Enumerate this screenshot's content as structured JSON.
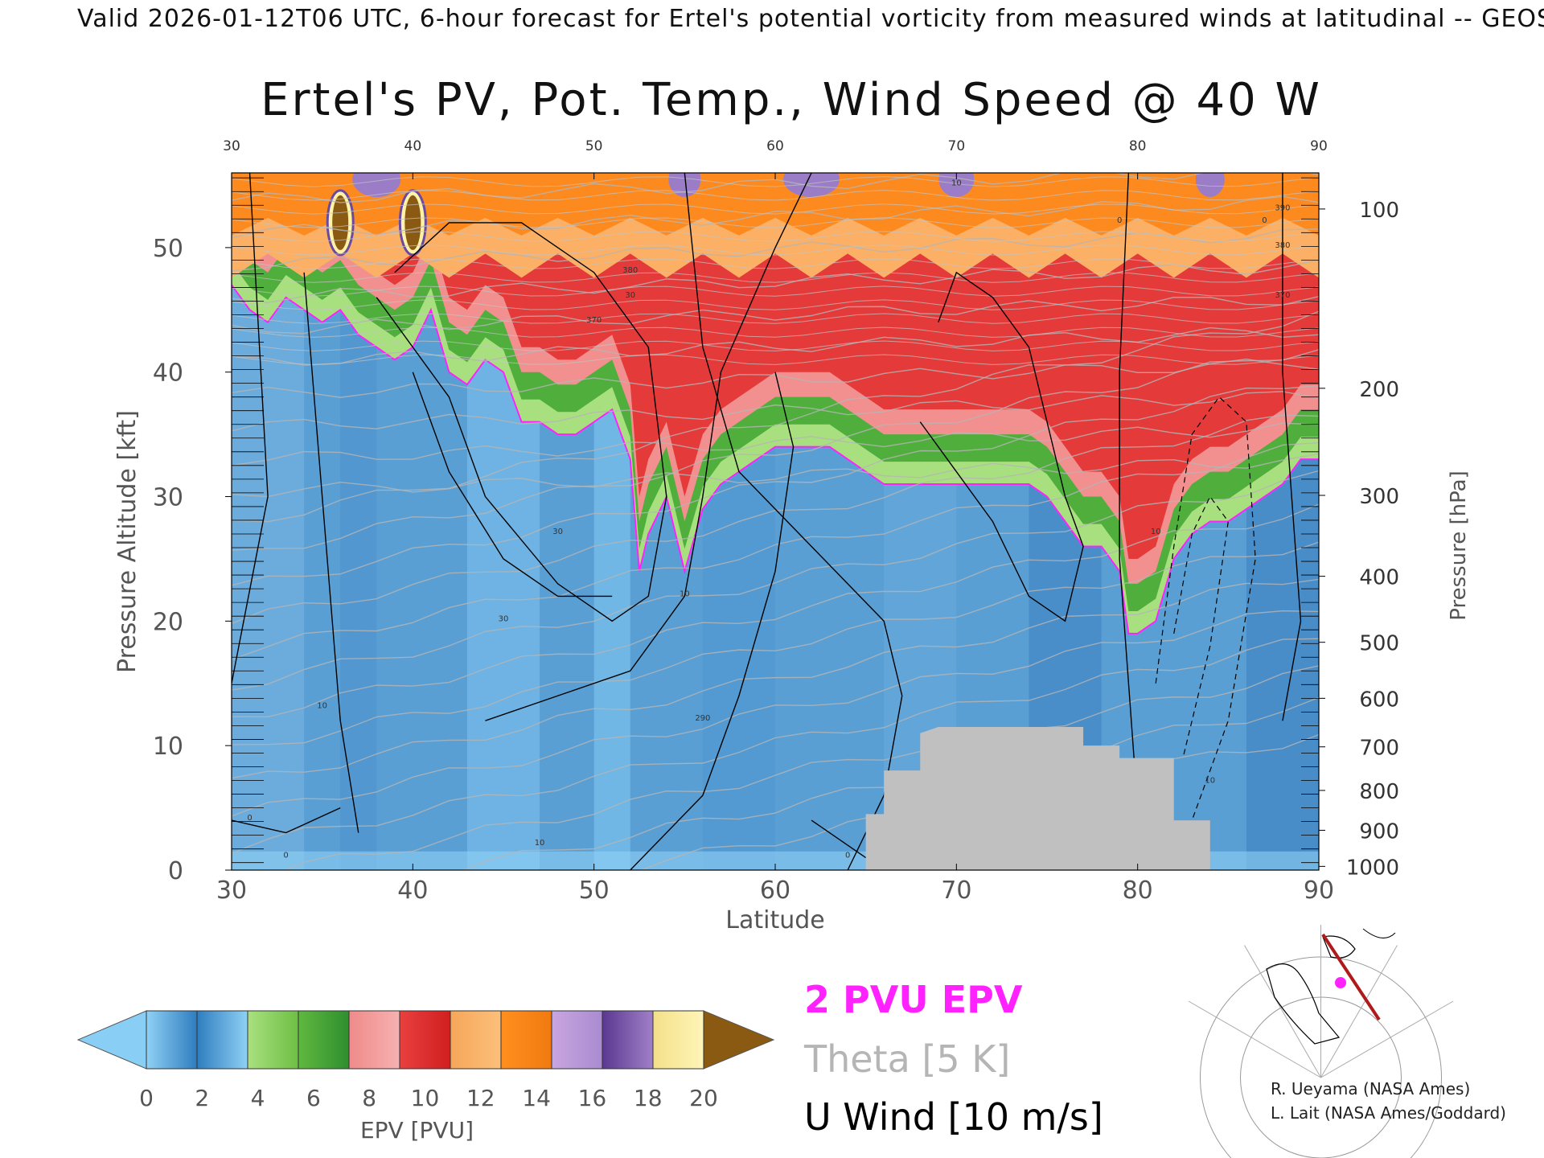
{
  "header": {
    "text": "Valid 2026-01-12T06 UTC, 6-hour forecast for Ertel's potential vorticity from measured winds at latitudinal -- GEOS"
  },
  "chart_data": {
    "type": "heatmap",
    "title": "Ertel's PV, Pot. Temp., Wind Speed @ 40 W",
    "xlabel": "Latitude",
    "ylabel_left": "Pressure Altitude [kft]",
    "ylabel_right": "Pressure [hPa]",
    "xlim": [
      30,
      90
    ],
    "ylim": [
      0,
      56
    ],
    "x_ticks": [
      30,
      40,
      50,
      60,
      70,
      80,
      90
    ],
    "y_ticks": [
      0,
      10,
      20,
      30,
      40,
      50
    ],
    "pressure_ticks": [
      {
        "label": "100",
        "kft": 53.1
      },
      {
        "label": "200",
        "kft": 38.7
      },
      {
        "label": "300",
        "kft": 30.1
      },
      {
        "label": "400",
        "kft": 23.6
      },
      {
        "label": "500",
        "kft": 18.3
      },
      {
        "label": "600",
        "kft": 13.8
      },
      {
        "label": "700",
        "kft": 9.9
      },
      {
        "label": "800",
        "kft": 6.4
      },
      {
        "label": "900",
        "kft": 3.2
      },
      {
        "label": "1000",
        "kft": 0.3
      }
    ],
    "colorbar": {
      "label": "EPV [PVU]",
      "ticks": [
        "0",
        "2",
        "4",
        "6",
        "8",
        "10",
        "12",
        "14",
        "16",
        "18",
        "20"
      ],
      "segments": [
        [
          "#8fd1f5",
          "#2f7dbf"
        ],
        [
          "#2f7dbf",
          "#8fd1f5"
        ],
        [
          "#a9e07f",
          "#6ebf45"
        ],
        [
          "#5fb83f",
          "#2f8f2f"
        ],
        [
          "#ef8a8a",
          "#f7b1b1"
        ],
        [
          "#e84040",
          "#d11f1f"
        ],
        [
          "#f6a65a",
          "#fcc07a"
        ],
        [
          "#ff8f1f",
          "#f07a10"
        ],
        [
          "#c9a6e0",
          "#a98bd0"
        ],
        [
          "#5a3890",
          "#a080c8"
        ],
        [
          "#f4e08a",
          "#fff5b8"
        ]
      ],
      "under_color": "#89cff5",
      "over_color": "#8b5a12"
    },
    "tropopause_boundary_kft": [
      [
        30,
        47
      ],
      [
        31,
        45
      ],
      [
        32,
        44
      ],
      [
        33,
        46
      ],
      [
        34,
        45
      ],
      [
        35,
        44
      ],
      [
        36,
        45
      ],
      [
        37,
        43
      ],
      [
        38,
        42
      ],
      [
        39,
        41
      ],
      [
        40,
        42
      ],
      [
        41,
        45
      ],
      [
        42,
        40
      ],
      [
        43,
        39
      ],
      [
        44,
        41
      ],
      [
        45,
        40
      ],
      [
        46,
        36
      ],
      [
        47,
        36
      ],
      [
        48,
        35
      ],
      [
        49,
        35
      ],
      [
        50,
        36
      ],
      [
        51,
        37
      ],
      [
        52,
        33
      ],
      [
        52.5,
        24
      ],
      [
        53,
        27
      ],
      [
        54,
        30
      ],
      [
        55,
        24
      ],
      [
        56,
        29
      ],
      [
        57,
        31
      ],
      [
        58,
        32
      ],
      [
        59,
        33
      ],
      [
        60,
        34
      ],
      [
        61,
        34
      ],
      [
        62,
        34
      ],
      [
        63,
        34
      ],
      [
        64,
        33
      ],
      [
        65,
        32
      ],
      [
        66,
        31
      ],
      [
        67,
        31
      ],
      [
        68,
        31
      ],
      [
        69,
        31
      ],
      [
        70,
        31
      ],
      [
        71,
        31
      ],
      [
        72,
        31
      ],
      [
        73,
        31
      ],
      [
        74,
        31
      ],
      [
        75,
        30
      ],
      [
        76,
        28
      ],
      [
        77,
        26
      ],
      [
        78,
        26
      ],
      [
        79,
        24
      ],
      [
        79.5,
        19
      ],
      [
        80,
        19
      ],
      [
        81,
        20
      ],
      [
        82,
        25
      ],
      [
        83,
        27
      ],
      [
        84,
        28
      ],
      [
        85,
        28
      ],
      [
        86,
        29
      ],
      [
        87,
        30
      ],
      [
        88,
        31
      ],
      [
        89,
        33
      ],
      [
        90,
        33
      ]
    ],
    "layers_kft": {
      "green_top_offset": 4,
      "red_top_offset": 12,
      "orange_above_kft": 49,
      "purple_above_kft": 54
    },
    "terrain": [
      [
        65,
        0
      ],
      [
        65,
        4.5
      ],
      [
        66,
        4.5
      ],
      [
        66,
        8
      ],
      [
        68,
        8
      ],
      [
        68,
        11
      ],
      [
        69,
        11.5
      ],
      [
        77,
        11.5
      ],
      [
        77,
        10
      ],
      [
        79,
        10
      ],
      [
        79,
        9
      ],
      [
        82,
        9
      ],
      [
        82,
        4
      ],
      [
        84,
        4
      ],
      [
        84,
        0
      ]
    ],
    "features": [
      {
        "type": "max",
        "lat": 36,
        "kft": 52,
        "color": "#8b5a12"
      },
      {
        "type": "max",
        "lat": 40,
        "kft": 52,
        "color": "#8b5a12"
      }
    ],
    "legend_entries": [
      {
        "label": "2 PVU EPV",
        "color": "#ff22ff"
      },
      {
        "label": "Theta [5 K]",
        "color": "#b5b5b5"
      },
      {
        "label": "U Wind [10 m/s]",
        "color": "#000000"
      }
    ],
    "contour_labels": [
      {
        "text": "10",
        "lat": 70,
        "kft": 55
      },
      {
        "text": "0",
        "lat": 79,
        "kft": 52
      },
      {
        "text": "0",
        "lat": 87,
        "kft": 52
      },
      {
        "text": "30",
        "lat": 52,
        "kft": 46
      },
      {
        "text": "380",
        "lat": 52,
        "kft": 48
      },
      {
        "text": "370",
        "lat": 50,
        "kft": 44
      },
      {
        "text": "370",
        "lat": 88,
        "kft": 46
      },
      {
        "text": "380",
        "lat": 88,
        "kft": 50
      },
      {
        "text": "390",
        "lat": 88,
        "kft": 53
      },
      {
        "text": "30",
        "lat": 48,
        "kft": 27
      },
      {
        "text": "30",
        "lat": 45,
        "kft": 20
      },
      {
        "text": "10",
        "lat": 55,
        "kft": 22
      },
      {
        "text": "10",
        "lat": 81,
        "kft": 27
      },
      {
        "text": "10",
        "lat": 84,
        "kft": 7
      },
      {
        "text": "10",
        "lat": 35,
        "kft": 13
      },
      {
        "text": "10",
        "lat": 47,
        "kft": 2
      },
      {
        "text": "0",
        "lat": 31,
        "kft": 4
      },
      {
        "text": "0",
        "lat": 33,
        "kft": 1
      },
      {
        "text": "0",
        "lat": 64,
        "kft": 1
      },
      {
        "text": "290",
        "lat": 56,
        "kft": 12
      }
    ]
  },
  "inset_map": {
    "description_colors": {
      "track": "#b01a1a",
      "marker": "#ff22ff"
    }
  },
  "credits": [
    "R. Ueyama (NASA Ames)",
    "L. Lait (NASA Ames/Goddard)"
  ]
}
